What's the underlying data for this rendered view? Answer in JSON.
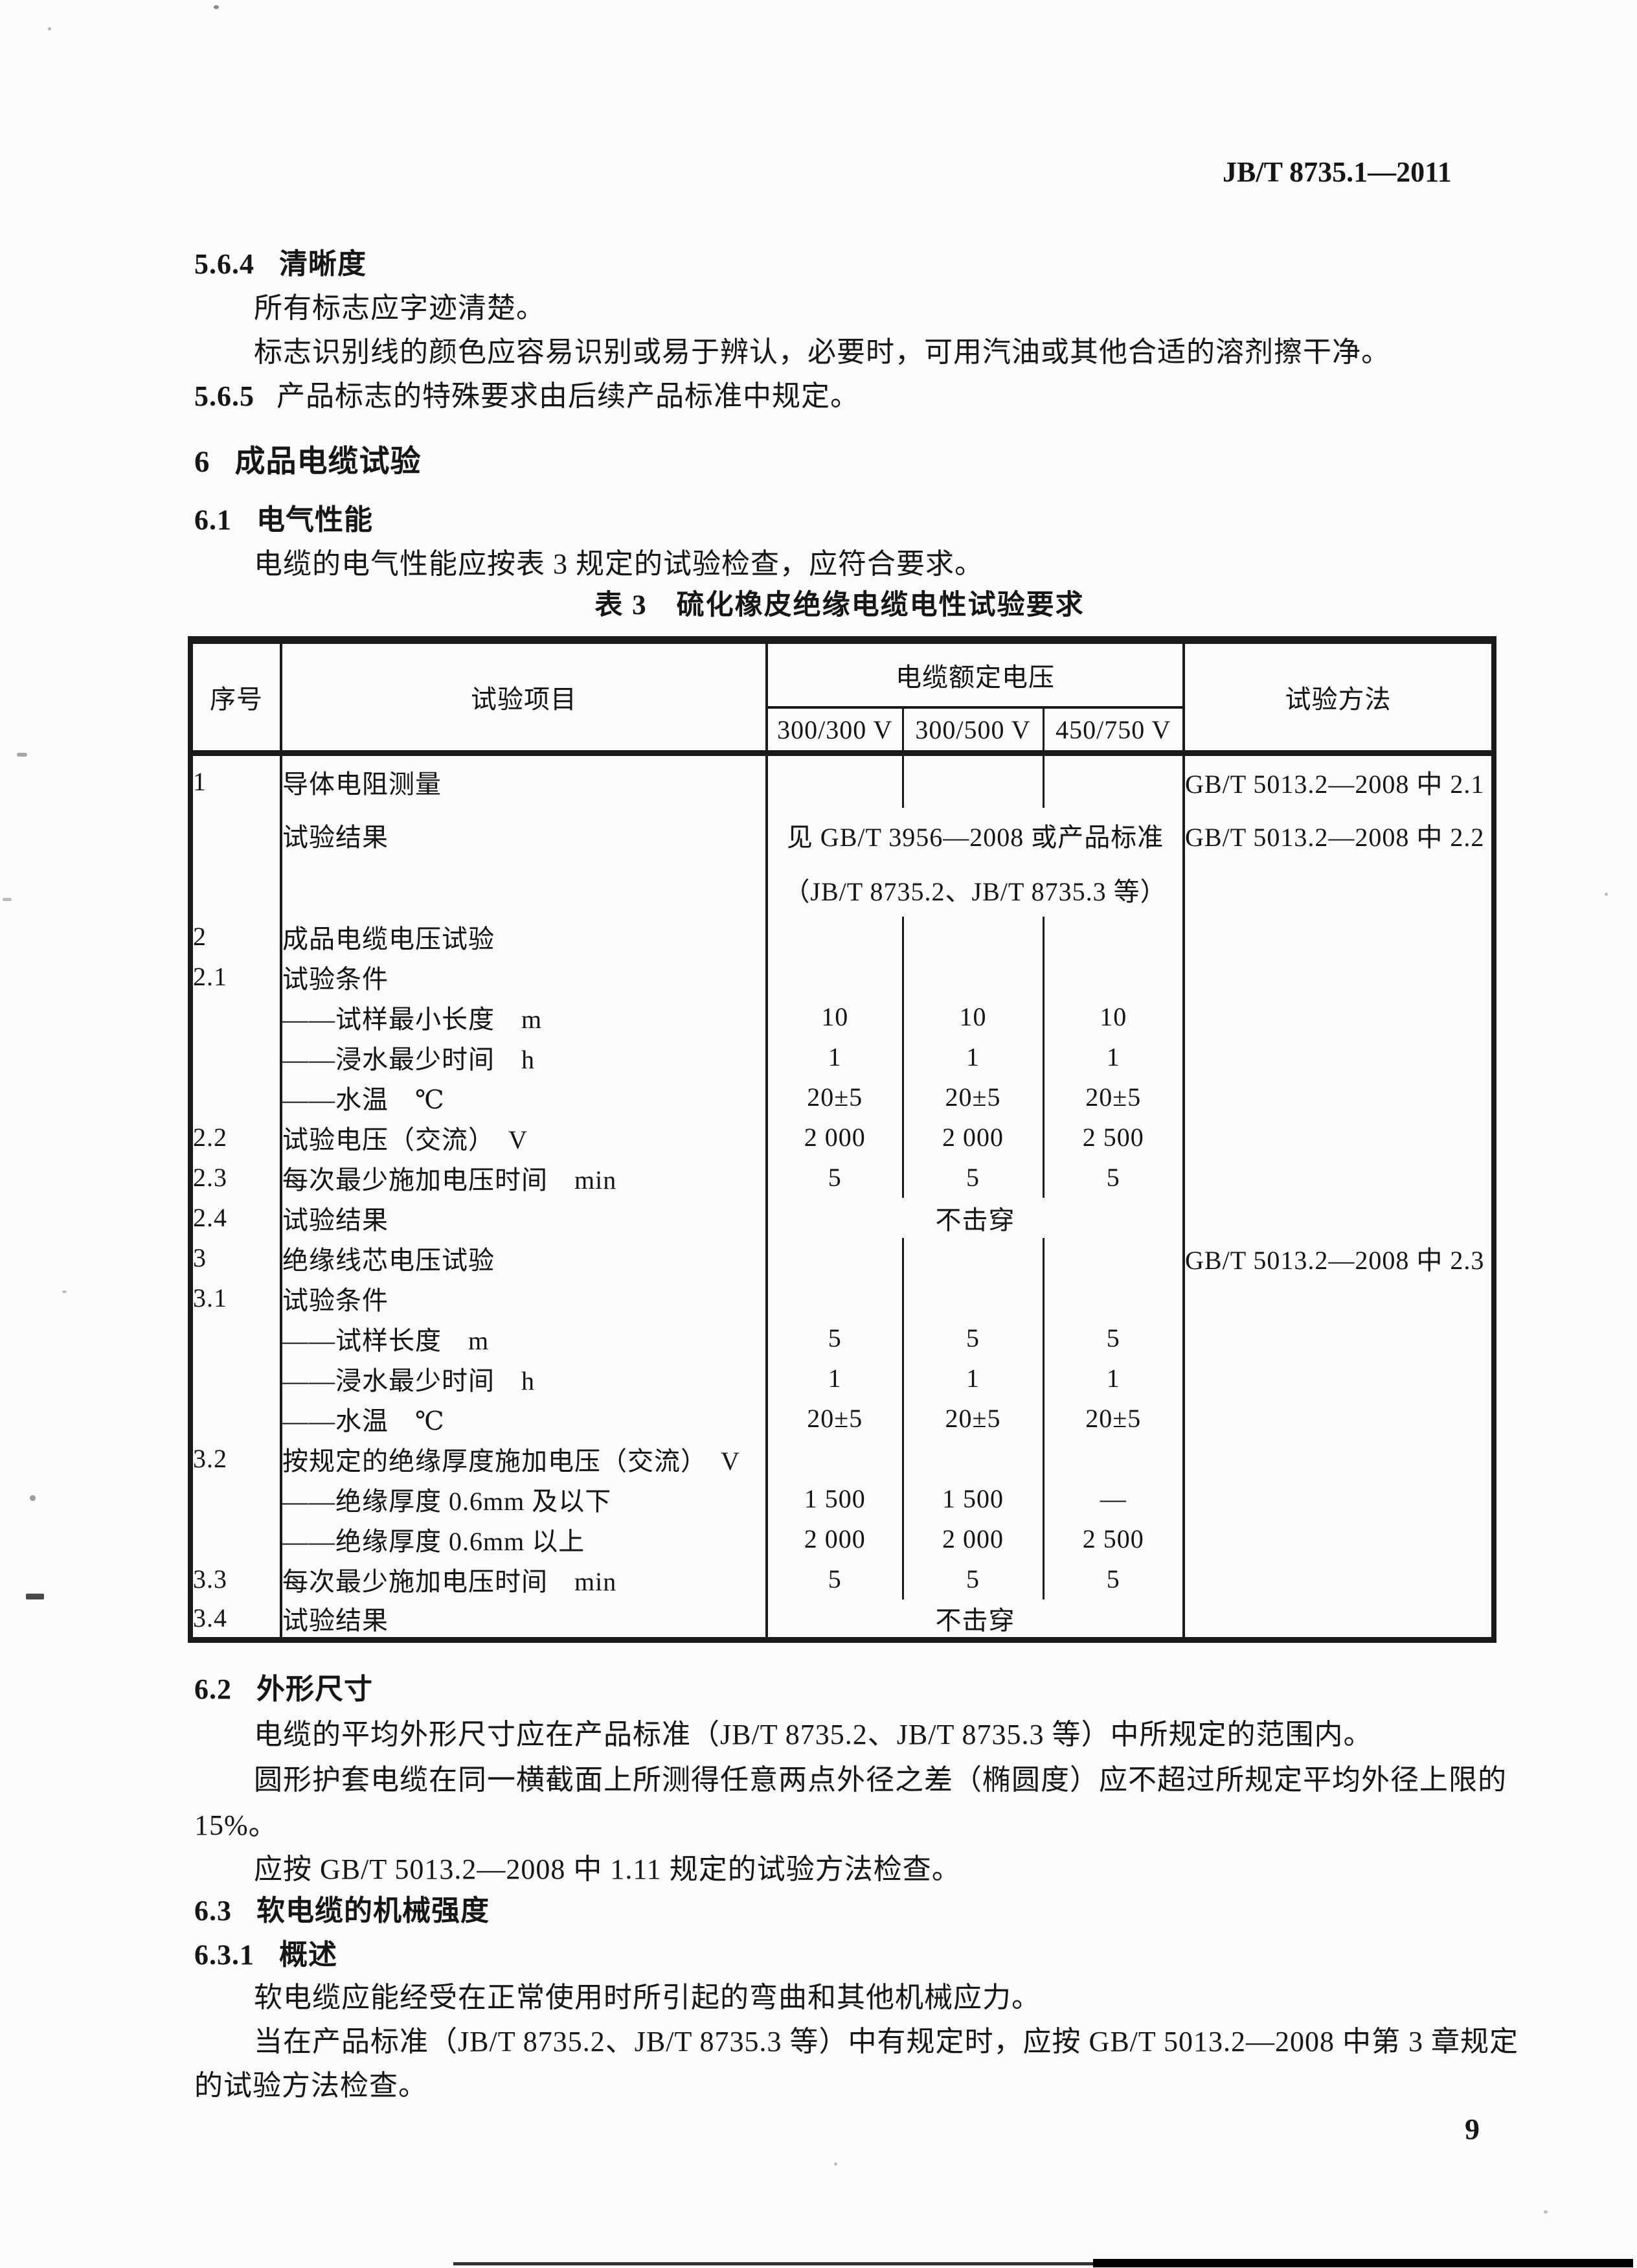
{
  "page": {
    "doc_number": "JB/T 8735.1—2011",
    "page_number": "9"
  },
  "clauses": {
    "c564_num": "5.6.4",
    "c564_title": "清晰度",
    "c564_p1": "所有标志应字迹清楚。",
    "c564_p2": "标志识别线的颜色应容易识别或易于辨认，必要时，可用汽油或其他合适的溶剂擦干净。",
    "c565_num": "5.6.5",
    "c565_text": "产品标志的特殊要求由后续产品标准中规定。",
    "c6_num": "6",
    "c6_title": "成品电缆试验",
    "c61_num": "6.1",
    "c61_title": "电气性能",
    "c61_p1": "电缆的电气性能应按表 3 规定的试验检查，应符合要求。",
    "c62_num": "6.2",
    "c62_title": "外形尺寸",
    "c62_p1": "电缆的平均外形尺寸应在产品标准（JB/T 8735.2、JB/T 8735.3 等）中所规定的范围内。",
    "c62_p2a": "圆形护套电缆在同一横截面上所测得任意两点外径之差（椭圆度）应不超过所规定平均外径上限的",
    "c62_p2b": "15%。",
    "c62_p3": "应按 GB/T 5013.2—2008 中 1.11 规定的试验方法检查。",
    "c63_num": "6.3",
    "c63_title": "软电缆的机械强度",
    "c631_num": "6.3.1",
    "c631_title": "概述",
    "c631_p1": "软电缆应能经受在正常使用时所引起的弯曲和其他机械应力。",
    "c631_p2a": "当在产品标准（JB/T 8735.2、JB/T 8735.3 等）中有规定时，应按 GB/T 5013.2—2008 中第 3 章规定",
    "c631_p2b": "的试验方法检查。"
  },
  "table": {
    "caption": "表 3　硫化橡皮绝缘电缆电性试验要求",
    "headers": {
      "seq": "序号",
      "item": "试验项目",
      "voltage_group": "电缆额定电压",
      "voltages": [
        "300/300 V",
        "300/500 V",
        "450/750 V"
      ],
      "method": "试验方法"
    },
    "rows": [
      {
        "seq": "1",
        "item": "导体电阻测量",
        "v": [
          "",
          "",
          ""
        ],
        "method": "GB/T 5013.2—2008 中 2.1"
      },
      {
        "seq": "",
        "item": "试验结果",
        "span": "见 GB/T 3956—2008 或产品标准",
        "method": "GB/T 5013.2—2008 中 2.2"
      },
      {
        "seq": "",
        "item": "",
        "span": "（JB/T 8735.2、JB/T 8735.3 等）",
        "method": ""
      },
      {
        "seq": "2",
        "item": "成品电缆电压试验",
        "v": [
          "",
          "",
          ""
        ],
        "method": ""
      },
      {
        "seq": "2.1",
        "item": "试验条件",
        "v": [
          "",
          "",
          ""
        ],
        "method": ""
      },
      {
        "seq": "",
        "item": "——试样最小长度　m",
        "v": [
          "10",
          "10",
          "10"
        ],
        "method": ""
      },
      {
        "seq": "",
        "item": "——浸水最少时间　h",
        "v": [
          "1",
          "1",
          "1"
        ],
        "method": ""
      },
      {
        "seq": "",
        "item": "——水温　℃",
        "v": [
          "20±5",
          "20±5",
          "20±5"
        ],
        "method": ""
      },
      {
        "seq": "2.2",
        "item": "试验电压（交流）　V",
        "v": [
          "2 000",
          "2 000",
          "2 500"
        ],
        "method": ""
      },
      {
        "seq": "2.3",
        "item": "每次最少施加电压时间　min",
        "v": [
          "5",
          "5",
          "5"
        ],
        "method": ""
      },
      {
        "seq": "2.4",
        "item": "试验结果",
        "span": "不击穿",
        "method": ""
      },
      {
        "seq": "3",
        "item": "绝缘线芯电压试验",
        "v": [
          "",
          "",
          ""
        ],
        "method": "GB/T 5013.2—2008 中 2.3"
      },
      {
        "seq": "3.1",
        "item": "试验条件",
        "v": [
          "",
          "",
          ""
        ],
        "method": ""
      },
      {
        "seq": "",
        "item": "——试样长度　m",
        "v": [
          "5",
          "5",
          "5"
        ],
        "method": ""
      },
      {
        "seq": "",
        "item": "——浸水最少时间　h",
        "v": [
          "1",
          "1",
          "1"
        ],
        "method": ""
      },
      {
        "seq": "",
        "item": "——水温　℃",
        "v": [
          "20±5",
          "20±5",
          "20±5"
        ],
        "method": ""
      },
      {
        "seq": "3.2",
        "item": "按规定的绝缘厚度施加电压（交流）　V",
        "v": [
          "",
          "",
          ""
        ],
        "method": ""
      },
      {
        "seq": "",
        "item": "——绝缘厚度 0.6mm 及以下",
        "v": [
          "1 500",
          "1 500",
          "—"
        ],
        "method": ""
      },
      {
        "seq": "",
        "item": "——绝缘厚度 0.6mm 以上",
        "v": [
          "2 000",
          "2 000",
          "2 500"
        ],
        "method": ""
      },
      {
        "seq": "3.3",
        "item": "每次最少施加电压时间　min",
        "v": [
          "5",
          "5",
          "5"
        ],
        "method": ""
      },
      {
        "seq": "3.4",
        "item": "试验结果",
        "span": "不击穿",
        "method": ""
      }
    ]
  }
}
